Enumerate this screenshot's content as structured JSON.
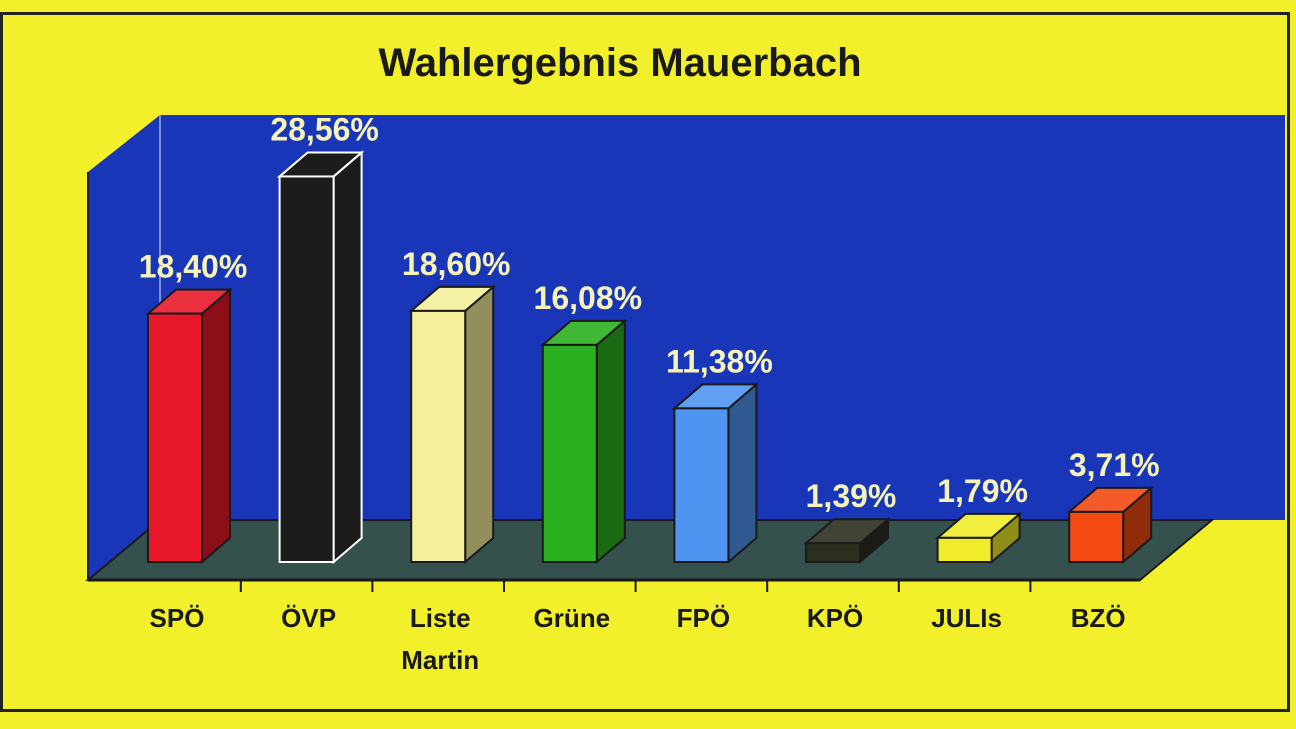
{
  "chart_data": {
    "type": "bar",
    "title": "Wahlergebnis Mauerbach",
    "categories": [
      [
        "SPÖ"
      ],
      [
        "ÖVP"
      ],
      [
        "Liste",
        "Martin"
      ],
      [
        "Grüne"
      ],
      [
        "FPÖ"
      ],
      [
        "KPÖ"
      ],
      [
        "JULIs"
      ],
      [
        "BZÖ"
      ]
    ],
    "values": [
      18.4,
      28.56,
      18.6,
      16.08,
      11.38,
      1.39,
      1.79,
      3.71
    ],
    "value_labels": [
      "18,40%",
      "28,56%",
      "18,60%",
      "16,08%",
      "11,38%",
      "1,39%",
      "1,79%",
      "3,71%"
    ],
    "colors": [
      "#e8182a",
      "#1c1c1c",
      "#f4ef9a",
      "#2bb01f",
      "#4f94f0",
      "#2b2f1f",
      "#f0ec2a",
      "#f24a12"
    ],
    "ylim": [
      0,
      30
    ],
    "style": "3d-bar",
    "background": "#f2ef2b",
    "plot_wall_color": "#1a36b8",
    "floor_color": "#34514e",
    "legend": "none",
    "grid": false
  }
}
